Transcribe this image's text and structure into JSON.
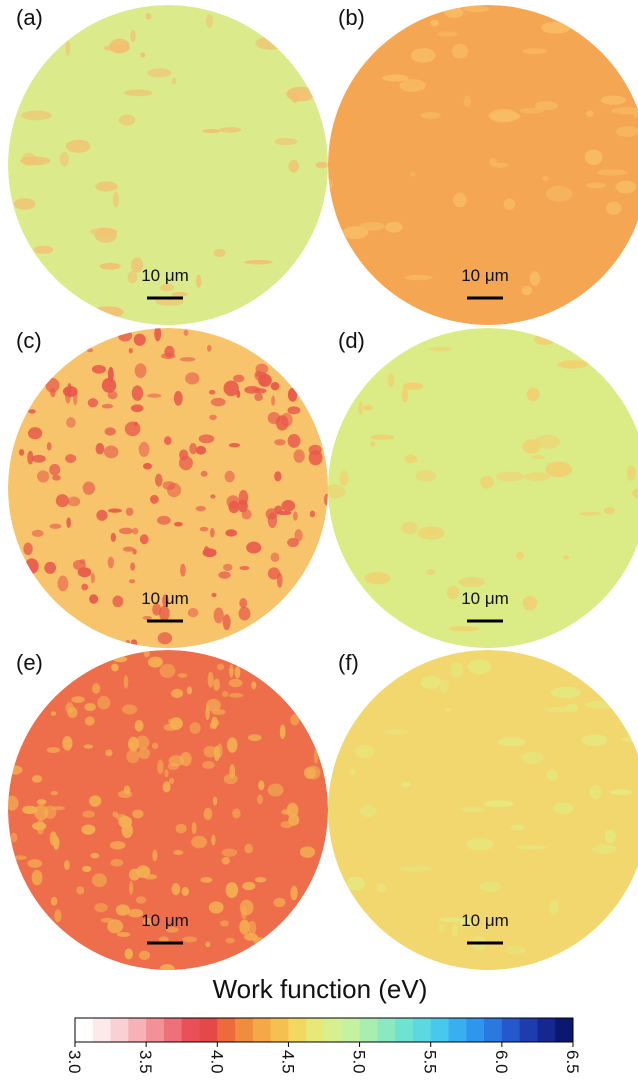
{
  "panels": [
    {
      "label": "(a)",
      "scale_label": "10 μm",
      "color": "#dbeb8c",
      "spot_color": "#f2c070"
    },
    {
      "label": "(b)",
      "scale_label": "10 μm",
      "color": "#f5a652",
      "spot_color": "#f7bc64"
    },
    {
      "label": "(c)",
      "scale_label": "10 μm",
      "color": "#f7c46c",
      "spot_color": "#e8584a"
    },
    {
      "label": "(d)",
      "scale_label": "10 μm",
      "color": "#dbeb86",
      "spot_color": "#f2cf70"
    },
    {
      "label": "(e)",
      "scale_label": "10 μm",
      "color": "#ee6e4c",
      "spot_color": "#f4b052"
    },
    {
      "label": "(f)",
      "scale_label": "10 μm",
      "color": "#f2d66e",
      "spot_color": "#e4e87e"
    }
  ],
  "colorbar": {
    "label": "Work function (eV)",
    "ticks": [
      "3.0",
      "3.5",
      "4.0",
      "4.5",
      "5.0",
      "5.5",
      "6.0",
      "6.5"
    ],
    "colors": [
      "#ffffff",
      "#fde8ea",
      "#fbd0d4",
      "#f6b2b6",
      "#f29298",
      "#ee7078",
      "#ea5058",
      "#e44848",
      "#ec6a3c",
      "#f08c40",
      "#f4a848",
      "#f6c050",
      "#f2d860",
      "#e6e878",
      "#d6f090",
      "#c4f2a0",
      "#a8eeb0",
      "#8ce8c0",
      "#70e2d0",
      "#5cd8e0",
      "#48c8ec",
      "#38b0f0",
      "#2e96ec",
      "#2a78e0",
      "#2458cc",
      "#1c3cb0",
      "#142890",
      "#0a1870"
    ]
  }
}
